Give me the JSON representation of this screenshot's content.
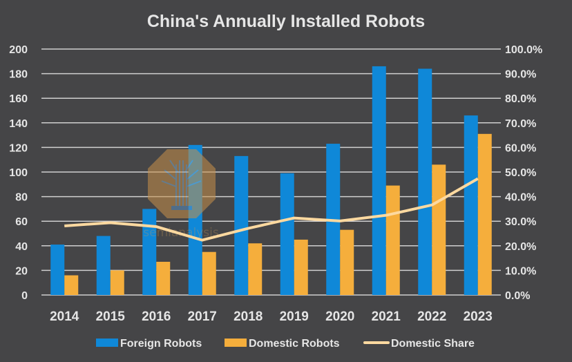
{
  "chart_data": {
    "type": "bar",
    "title": "China's Annually Installed Robots",
    "xlabel": "",
    "ylabel": "",
    "y2label": "",
    "categories": [
      "2014",
      "2015",
      "2016",
      "2017",
      "2018",
      "2019",
      "2020",
      "2021",
      "2022",
      "2023"
    ],
    "series": [
      {
        "name": "Foreign Robots",
        "type": "bar",
        "axis": "left",
        "color": "#0f88d8",
        "values": [
          41,
          48,
          70,
          122,
          113,
          99,
          123,
          186,
          184,
          146
        ]
      },
      {
        "name": "Domestic Robots",
        "type": "bar",
        "axis": "left",
        "color": "#f5ae3c",
        "values": [
          16,
          20,
          27,
          35,
          42,
          45,
          53,
          89,
          106,
          131
        ]
      },
      {
        "name": "Domestic Share",
        "type": "line",
        "axis": "right",
        "color": "#fdd9a0",
        "values": [
          28.1,
          29.4,
          27.8,
          22.3,
          27.1,
          31.3,
          30.1,
          32.4,
          36.6,
          47.3
        ]
      }
    ],
    "ylim": [
      0,
      200
    ],
    "y2lim": [
      0,
      100
    ],
    "yticks": [
      "0",
      "20",
      "40",
      "60",
      "80",
      "100",
      "120",
      "140",
      "160",
      "180",
      "200"
    ],
    "y2ticks": [
      "0.0%",
      "10.0%",
      "20.0%",
      "30.0%",
      "40.0%",
      "50.0%",
      "60.0%",
      "70.0%",
      "80.0%",
      "90.0%",
      "100.0%"
    ],
    "grid": true,
    "legend_position": "bottom",
    "background": "#454547",
    "watermark": "semianalysis"
  }
}
